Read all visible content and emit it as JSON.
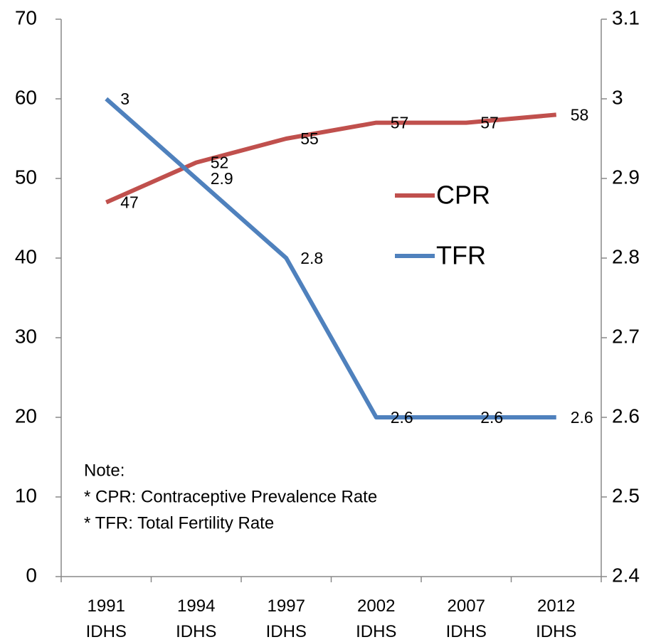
{
  "chart_data": {
    "type": "line",
    "categories": [
      "1991\nIDHS",
      "1994\nIDHS",
      "1997\nIDHS",
      "2002\nIDHS",
      "2007\nIDHS",
      "2012\nIDHS"
    ],
    "series": [
      {
        "name": "CPR",
        "color": "#c0504d",
        "values": [
          47,
          52,
          55,
          57,
          57,
          58
        ]
      },
      {
        "name": "TFR",
        "color": "#4f81bd",
        "axis": "y2",
        "values": [
          3,
          2.9,
          2.8,
          2.6,
          2.6,
          2.6
        ]
      }
    ],
    "ylim": [
      0,
      70
    ],
    "yticks": [
      0,
      10,
      20,
      30,
      40,
      50,
      60,
      70
    ],
    "y2lim": [
      2.4,
      3.1
    ],
    "y2ticks": [
      2.4,
      2.5,
      2.6,
      2.7,
      2.8,
      2.9,
      3,
      3.1
    ],
    "grid": false,
    "legend": "center right",
    "data_labels": true,
    "annotations": [
      "Note:",
      "* CPR: Contraceptive Prevalence Rate",
      "* TFR: Total Fertility Rate"
    ]
  }
}
